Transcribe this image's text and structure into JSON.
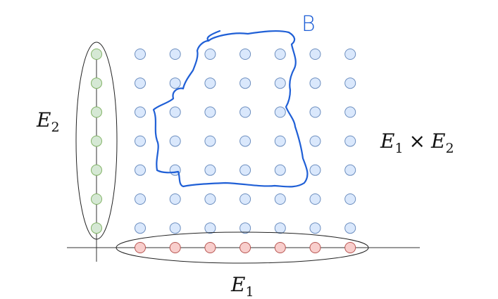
{
  "labels": {
    "e2": {
      "main": "E",
      "sub": "2"
    },
    "e1": {
      "main": "E",
      "sub": "1"
    },
    "product": {
      "a": "E",
      "a_sub": "1",
      "op": "×",
      "b": "E",
      "b_sub": "2"
    },
    "region": "B"
  },
  "grid": {
    "columns": 7,
    "rows": 7
  },
  "colors": {
    "axis_line": "#333333",
    "ellipse": "#222222",
    "grid_fill": "#dae8fc",
    "grid_stroke": "#6c8ebf",
    "e1_fill": "#f8cecc",
    "e1_stroke": "#b85450",
    "e2_fill": "#d5e8d4",
    "e2_stroke": "#82b366",
    "region_stroke": "#1f5fd6"
  }
}
